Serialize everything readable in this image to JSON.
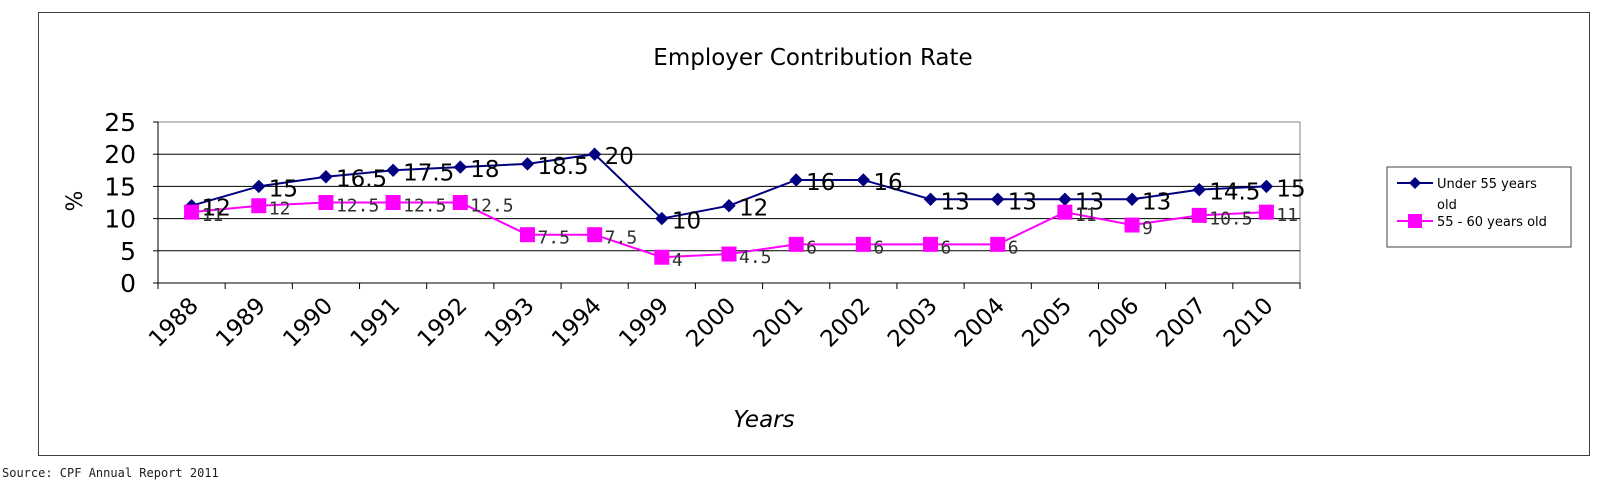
{
  "source_note": "Source: CPF Annual Report 2011",
  "chart_data": {
    "type": "line",
    "title": "Employer Contribution Rate",
    "xlabel": "Years",
    "ylabel": "%",
    "categories": [
      "1988",
      "1989",
      "1990",
      "1991",
      "1992",
      "1993",
      "1994",
      "1999",
      "2000",
      "2001",
      "2002",
      "2003",
      "2004",
      "2005",
      "2006",
      "2007",
      "2010"
    ],
    "ylim": [
      0,
      25
    ],
    "yticks": [
      "0",
      "5",
      "10",
      "15",
      "20",
      "25"
    ],
    "grid": true,
    "legend_position": "right",
    "series": [
      {
        "name": "Under 55 years old",
        "color": "#000080",
        "marker": "diamond",
        "values": [
          12,
          15,
          16.5,
          17.5,
          18,
          18.5,
          20,
          10,
          12,
          16,
          16,
          13,
          13,
          13,
          13,
          14.5,
          15
        ],
        "labels": [
          "12",
          "15",
          "16.5",
          "17.5",
          "18",
          "18.5",
          "20",
          "10",
          "12",
          "16",
          "16",
          "13",
          "13",
          "13",
          "13",
          "14.5",
          "15"
        ]
      },
      {
        "name": "55 - 60 years old",
        "color": "#FF00FF",
        "marker": "square",
        "values": [
          11,
          12,
          12.5,
          12.5,
          12.5,
          7.5,
          7.5,
          4,
          4.5,
          6,
          6,
          6,
          6,
          11,
          9,
          10.5,
          11
        ],
        "labels": [
          "11",
          "12",
          "12.5",
          "12.5",
          "12.5",
          "7.5",
          "7.5",
          "4",
          "4.5",
          "6",
          "6",
          "6",
          "6",
          "11",
          "9",
          "10.5",
          "11"
        ]
      }
    ]
  }
}
